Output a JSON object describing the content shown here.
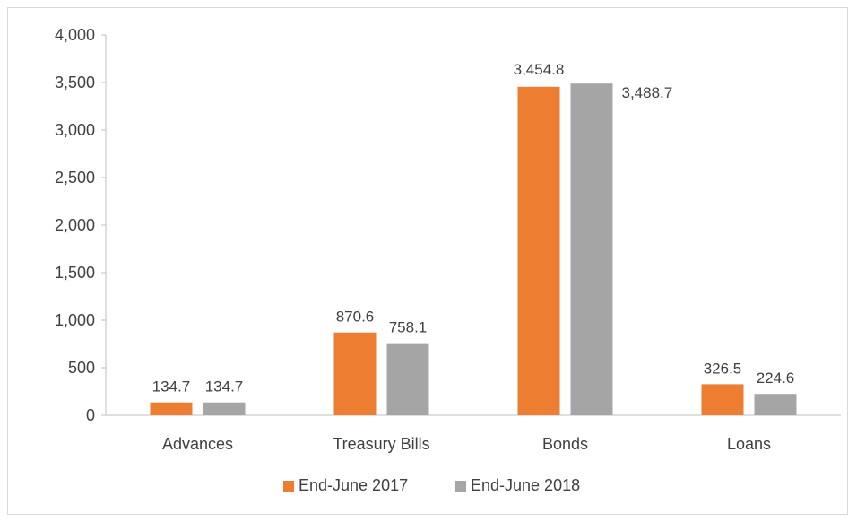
{
  "chart_data": {
    "type": "bar",
    "categories": [
      "Advances",
      "Treasury Bills",
      "Bonds",
      "Loans"
    ],
    "series": [
      {
        "name": "End-June 2017",
        "values": [
          134.7,
          870.6,
          3454.8,
          326.5
        ],
        "labels": [
          "134.7",
          "870.6",
          "3,454.8",
          "326.5"
        ],
        "color": "#ed7d31"
      },
      {
        "name": "End-June 2018",
        "values": [
          134.7,
          758.1,
          3488.7,
          224.6
        ],
        "labels": [
          "134.7",
          "758.1",
          "3,488.7",
          "224.6"
        ],
        "color": "#a5a5a5"
      }
    ],
    "ylim": [
      0,
      4000
    ],
    "yticks": [
      0,
      500,
      1000,
      1500,
      2000,
      2500,
      3000,
      3500,
      4000
    ],
    "ytick_labels": [
      "0",
      "500",
      "1,000",
      "1,500",
      "2,000",
      "2,500",
      "3,000",
      "3,500",
      "4,000"
    ],
    "grid": false,
    "legend_position": "bottom"
  }
}
